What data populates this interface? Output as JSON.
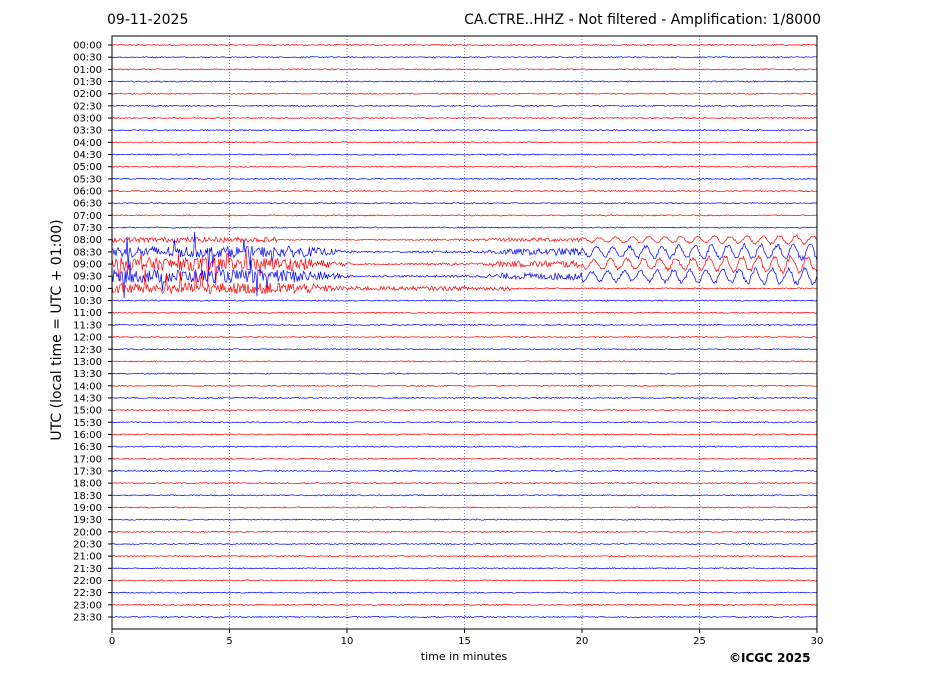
{
  "header": {
    "date": "09-11-2025",
    "station_title": "CA.CTRE..HHZ - Not filtered - Amplification: 1/8000"
  },
  "footer": {
    "copyright": "©ICGC 2025"
  },
  "chart_data": {
    "type": "line",
    "title": "CA.CTRE..HHZ - Not filtered - Amplification: 1/8000",
    "xlabel": "time in minutes",
    "ylabel": "UTC (local time = UTC + 01:00)",
    "xlim": [
      0,
      30
    ],
    "xticks": [
      0,
      5,
      10,
      15,
      20,
      25,
      30
    ],
    "grid": "vertical dotted lines at 5-minute intervals",
    "trace_colors": [
      "#ff0000",
      "#0000ff"
    ],
    "rows": [
      "00:00",
      "00:30",
      "01:00",
      "01:30",
      "02:00",
      "02:30",
      "03:00",
      "03:30",
      "04:00",
      "04:30",
      "05:00",
      "05:30",
      "06:00",
      "06:30",
      "07:00",
      "07:30",
      "08:00",
      "08:30",
      "09:00",
      "09:30",
      "10:00",
      "10:30",
      "11:00",
      "11:30",
      "12:00",
      "12:30",
      "13:00",
      "13:30",
      "14:00",
      "14:30",
      "15:00",
      "15:30",
      "16:00",
      "16:30",
      "17:00",
      "17:30",
      "18:00",
      "18:30",
      "19:00",
      "19:30",
      "20:00",
      "20:30",
      "21:00",
      "21:30",
      "22:00",
      "22:30",
      "23:00",
      "23:30"
    ],
    "events": [
      {
        "rows": "08:30–10:00",
        "x_range_minutes": [
          0,
          10
        ],
        "description": "large spiky oscillations"
      },
      {
        "rows": "08:00–09:30",
        "x_range_minutes": [
          17,
          30
        ],
        "description": "growing long-period oscillations"
      }
    ]
  }
}
